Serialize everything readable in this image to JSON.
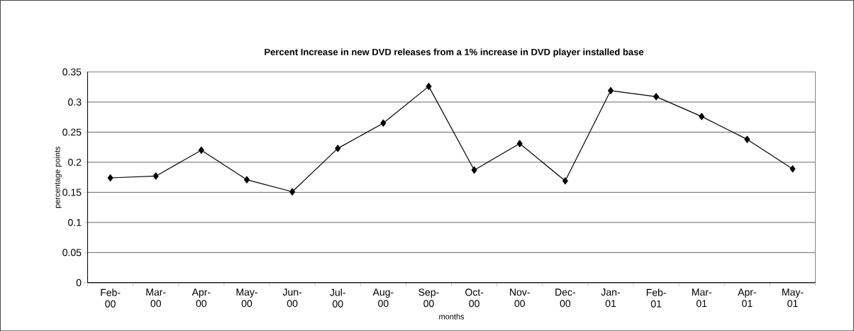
{
  "chart_data": {
    "type": "line",
    "title": "Percent Increase in new DVD releases from a 1% increase in DVD player installed base",
    "xlabel": "months",
    "ylabel": "percentage points",
    "categories": [
      "Feb-00",
      "Mar-00",
      "Apr-00",
      "May-00",
      "Jun-00",
      "Jul-00",
      "Aug-00",
      "Sep-00",
      "Oct-00",
      "Nov-00",
      "Dec-00",
      "Jan-01",
      "Feb-01",
      "Mar-01",
      "Apr-01",
      "May-01"
    ],
    "values": [
      0.174,
      0.177,
      0.22,
      0.171,
      0.151,
      0.223,
      0.265,
      0.326,
      0.187,
      0.231,
      0.169,
      0.319,
      0.309,
      0.276,
      0.238,
      0.189
    ],
    "color": "#000000",
    "marker": "diamond",
    "ylim": [
      0,
      0.35
    ],
    "yticks": [
      0,
      0.05,
      0.1,
      0.15,
      0.2,
      0.25,
      0.3,
      0.35
    ],
    "grid": "y"
  }
}
